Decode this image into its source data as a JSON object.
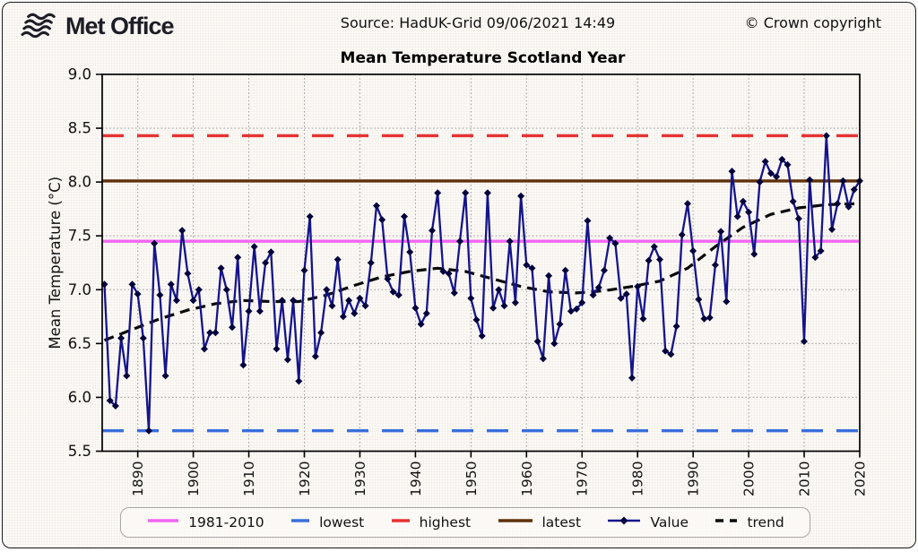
{
  "header": {
    "logo_text": "Met Office",
    "source": "Source: HadUK-Grid 09/06/2021 14:49",
    "copyright": "© Crown copyright"
  },
  "chart_data": {
    "type": "line",
    "title": "Mean Temperature Scotland Year",
    "xlabel": "",
    "ylabel": "Mean Temperature (°C)",
    "ylim": [
      5.5,
      9.0
    ],
    "xlim": [
      1883.6,
      2020
    ],
    "grid": "dotted",
    "legend_position": "bottom",
    "x_ticks": [
      1890,
      1900,
      1910,
      1920,
      1930,
      1940,
      1950,
      1960,
      1970,
      1980,
      1990,
      2000,
      2010,
      2020
    ],
    "x_tick_labels": [
      "1890",
      "1900",
      "1910",
      "1920",
      "1930",
      "1940",
      "1950",
      "1960",
      "1970",
      "1980",
      "1990",
      "2000",
      "2010",
      "2020"
    ],
    "y_ticks": [
      5.5,
      6.0,
      6.5,
      7.0,
      7.5,
      8.0,
      8.5,
      9.0
    ],
    "y_tick_labels": [
      "5.5",
      "6.0",
      "6.5",
      "7.0",
      "7.5",
      "8.0",
      "8.5",
      "9.0"
    ],
    "series_name": "Value",
    "value_color": "#14148c",
    "marker_color": "#00003c",
    "trend_color": "#0a0a0a",
    "start_year": 1884,
    "values": [
      7.05,
      5.97,
      5.92,
      6.55,
      6.2,
      7.05,
      6.96,
      6.55,
      5.69,
      7.43,
      6.95,
      6.2,
      7.05,
      6.9,
      7.55,
      7.15,
      6.9,
      7.0,
      6.45,
      6.6,
      6.6,
      7.2,
      7.0,
      6.65,
      7.3,
      6.3,
      6.8,
      7.4,
      6.8,
      7.25,
      7.35,
      6.45,
      6.9,
      6.35,
      6.9,
      6.15,
      7.18,
      7.68,
      6.38,
      6.6,
      7.0,
      6.85,
      7.28,
      6.75,
      6.9,
      6.78,
      6.92,
      6.85,
      7.25,
      7.78,
      7.65,
      7.1,
      6.98,
      6.95,
      7.68,
      7.35,
      6.83,
      6.68,
      6.78,
      7.55,
      7.9,
      7.17,
      7.15,
      6.97,
      7.45,
      7.9,
      6.92,
      6.72,
      6.57,
      7.9,
      6.83,
      7.0,
      6.85,
      7.45,
      6.88,
      7.87,
      7.23,
      7.2,
      6.52,
      6.36,
      7.13,
      6.5,
      6.68,
      7.18,
      6.8,
      6.82,
      6.88,
      7.64,
      6.95,
      7.02,
      7.18,
      7.48,
      7.43,
      6.92,
      6.96,
      6.18,
      7.03,
      6.73,
      7.27,
      7.4,
      7.28,
      6.43,
      6.4,
      6.66,
      7.51,
      7.8,
      7.36,
      6.91,
      6.73,
      6.74,
      7.23,
      7.54,
      6.89,
      8.1,
      7.68,
      7.82,
      7.72,
      7.33,
      8.0,
      8.19,
      8.08,
      8.05,
      8.21,
      8.16,
      7.82,
      7.66,
      6.52,
      8.02,
      7.3,
      7.36,
      8.43,
      7.56,
      7.8,
      8.01,
      7.77,
      7.93,
      8.01
    ],
    "trend": {
      "years": [
        1884,
        1889,
        1894,
        1899,
        1904,
        1909,
        1914,
        1919,
        1924,
        1929,
        1934,
        1939,
        1944,
        1949,
        1954,
        1959,
        1964,
        1969,
        1974,
        1979,
        1984,
        1989,
        1994,
        1999,
        2004,
        2009,
        2014,
        2020
      ],
      "values": [
        6.53,
        6.63,
        6.73,
        6.81,
        6.87,
        6.9,
        6.89,
        6.89,
        6.95,
        7.04,
        7.12,
        7.17,
        7.2,
        7.17,
        7.1,
        7.03,
        6.98,
        6.97,
        6.99,
        7.03,
        7.08,
        7.2,
        7.4,
        7.58,
        7.7,
        7.76,
        7.79,
        7.8
      ]
    },
    "reference_lines": [
      {
        "name": "1981-2010",
        "value": 7.45,
        "color": "#f266f2",
        "style": "solid"
      },
      {
        "name": "lowest",
        "value": 5.69,
        "color": "#3a6edd",
        "style": "dashed"
      },
      {
        "name": "highest",
        "value": 8.43,
        "color": "#e63232",
        "style": "dashed"
      },
      {
        "name": "latest",
        "value": 8.01,
        "color": "#5f3009",
        "style": "solid"
      }
    ]
  },
  "legend": {
    "items": [
      {
        "label": "1981-2010",
        "color": "#f266f2",
        "sample": "solid",
        "sample_w": 38
      },
      {
        "label": "lowest",
        "color": "#3a6edd",
        "sample": "solid",
        "sample_w": 24
      },
      {
        "label": "highest",
        "color": "#e63232",
        "sample": "solid",
        "sample_w": 24
      },
      {
        "label": "latest",
        "color": "#5f3009",
        "sample": "solid",
        "sample_w": 42
      },
      {
        "label": "Value",
        "color": "#14148c",
        "sample": "diamond",
        "sample_w": 40
      },
      {
        "label": "trend",
        "color": "#0a0a0a",
        "sample": "dashes",
        "sample_w": 28
      }
    ]
  }
}
